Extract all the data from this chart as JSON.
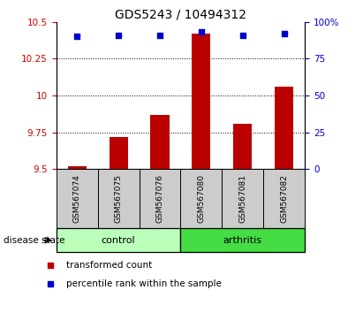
{
  "title": "GDS5243 / 10494312",
  "samples": [
    "GSM567074",
    "GSM567075",
    "GSM567076",
    "GSM567080",
    "GSM567081",
    "GSM567082"
  ],
  "red_values": [
    9.52,
    9.72,
    9.87,
    10.42,
    9.81,
    10.06
  ],
  "blue_values": [
    90,
    91,
    91,
    93,
    91,
    92
  ],
  "ylim_left": [
    9.5,
    10.5
  ],
  "ylim_right": [
    0,
    100
  ],
  "yticks_left": [
    9.5,
    9.75,
    10.0,
    10.25,
    10.5
  ],
  "yticks_right": [
    0,
    25,
    50,
    75,
    100
  ],
  "ytick_labels_left": [
    "9.5",
    "9.75",
    "10",
    "10.25",
    "10.5"
  ],
  "ytick_labels_right": [
    "0",
    "25",
    "50",
    "75",
    "100%"
  ],
  "grid_lines": [
    9.75,
    10.0,
    10.25
  ],
  "bar_color": "#bb0000",
  "dot_color": "#0000cc",
  "control_color": "#bbffbb",
  "arthritis_color": "#44dd44",
  "label_bg_color": "#cccccc",
  "disease_state_label": "disease state",
  "group_labels": [
    "control",
    "arthritis"
  ],
  "legend_red": "transformed count",
  "legend_blue": "percentile rank within the sample",
  "bar_width": 0.45,
  "left_tick_color": "#cc0000",
  "right_tick_color": "#0000cc",
  "title_fontsize": 10,
  "tick_fontsize": 7.5,
  "sample_fontsize": 6.5,
  "group_fontsize": 8,
  "legend_fontsize": 7.5
}
